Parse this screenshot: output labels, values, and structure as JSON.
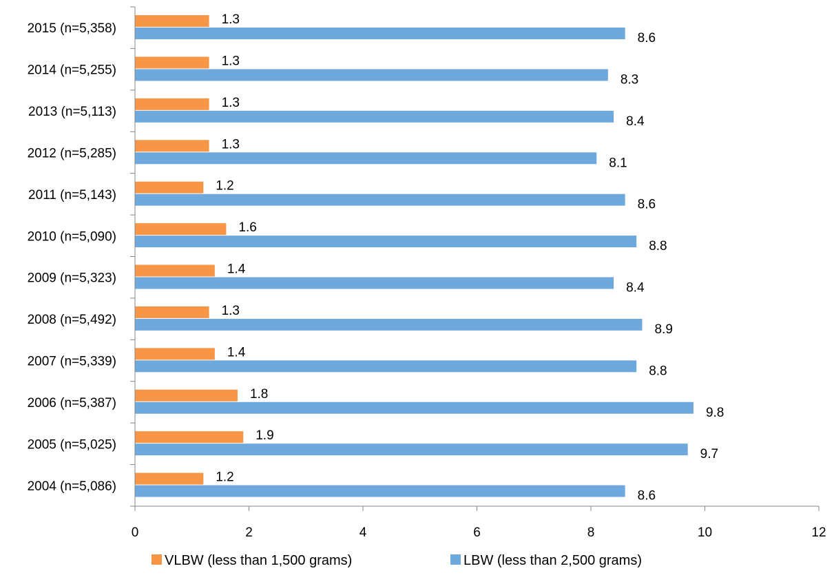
{
  "chart_data": {
    "type": "bar",
    "orientation": "horizontal",
    "categories": [
      "2015 (n=5,358)",
      "2014 (n=5,255)",
      "2013 (n=5,113)",
      "2012 (n=5,285)",
      "2011 (n=5,143)",
      "2010 (n=5,090)",
      "2009 (n=5,323)",
      "2008 (n=5,492)",
      "2007 (n=5,339)",
      "2006 (n=5,387)",
      "2005 (n=5,025)",
      "2004 (n=5,086)"
    ],
    "series": [
      {
        "name": "VLBW (less than 1,500 grams)",
        "color": "#f79646",
        "values": [
          1.3,
          1.3,
          1.3,
          1.3,
          1.2,
          1.6,
          1.4,
          1.3,
          1.4,
          1.8,
          1.9,
          1.2
        ],
        "labels": [
          "1.3",
          "1.3",
          "1.3",
          "1.3",
          "1.2",
          "1.6",
          "1.4",
          "1.3",
          "1.4",
          "1.8",
          "1.9",
          "1.2"
        ]
      },
      {
        "name": "LBW (less than 2,500 grams)",
        "color": "#6fa8dc",
        "values": [
          8.6,
          8.3,
          8.4,
          8.1,
          8.6,
          8.8,
          8.4,
          8.9,
          8.8,
          9.8,
          9.7,
          8.6
        ],
        "labels": [
          "8.6",
          "8.3",
          "8.4",
          "8.1",
          "8.6",
          "8.8",
          "8.4",
          "8.9",
          "8.8",
          "9.8",
          "9.7",
          "8.6"
        ]
      }
    ],
    "xlim": [
      0,
      12
    ],
    "xticks": [
      0,
      2,
      4,
      6,
      8,
      10,
      12
    ],
    "xtick_labels": [
      "0",
      "2",
      "4",
      "6",
      "8",
      "10",
      "12"
    ],
    "grid": false,
    "legend_position": "bottom",
    "axis_color": "#868686"
  }
}
